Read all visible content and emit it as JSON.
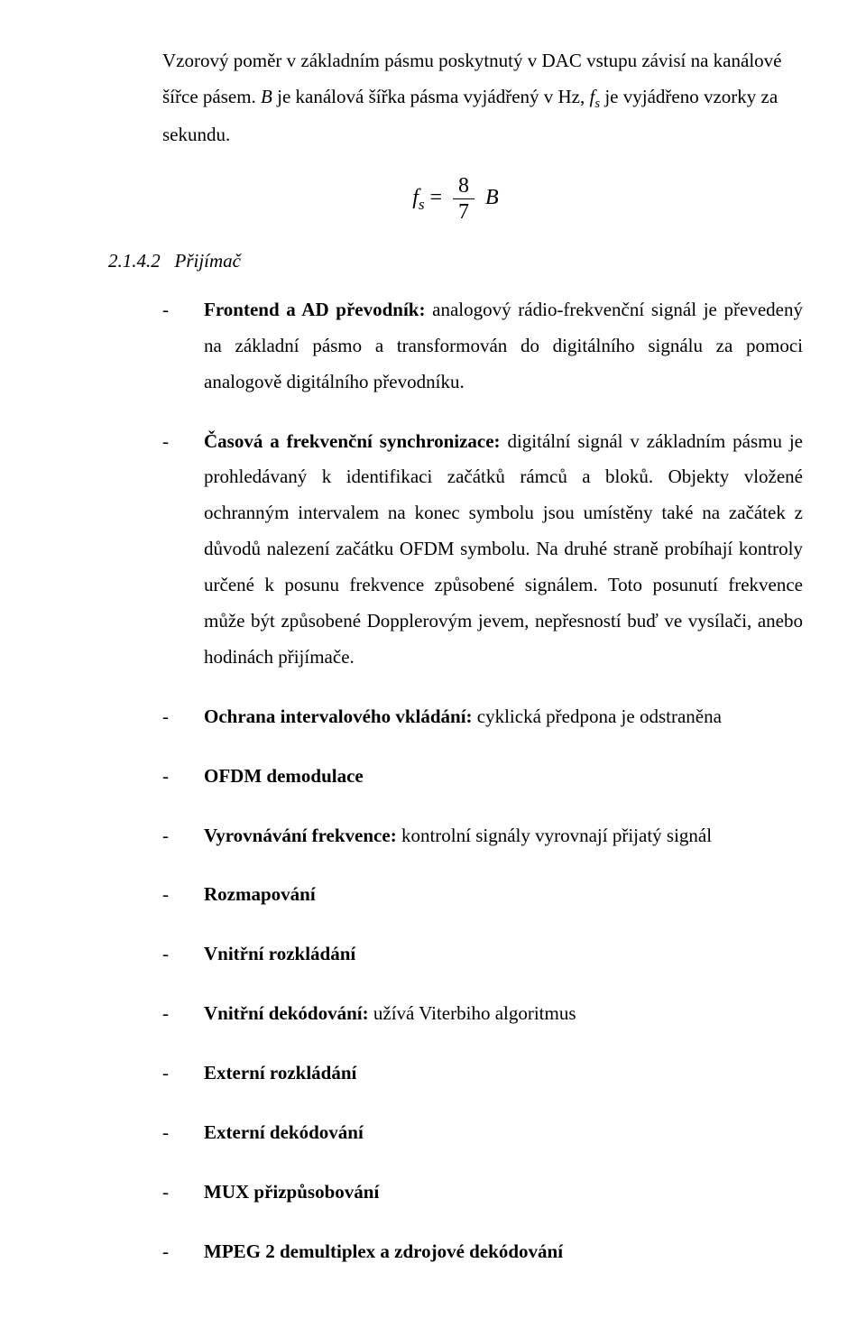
{
  "intro": {
    "line1_prefix": "Vzorový poměr v základním pásmu poskytnutý v DAC vstupu závisí na",
    "line2_prefix": "kanálové šířce pásem. ",
    "line2_Bword": "B",
    "line2_mid": " je kanálová šířka pásma vyjádřený v Hz,  ",
    "line2_f": "f",
    "line2_s": "s",
    "line2_end": " je",
    "line3": "vyjádřeno vzorky",
    "line4": "za sekundu."
  },
  "formula": {
    "lhs_f": "f",
    "lhs_s": "s",
    "eq": " = ",
    "num": "8",
    "den": "7",
    "rhs": "B"
  },
  "section": {
    "number": "2.1.4.2",
    "title": "Přijímač"
  },
  "items": [
    {
      "bold": "Frontend a AD převodník:",
      "rest": " analogový rádio-frekvenční signál je převedený na základní pásmo a transformován do digitálního signálu za pomoci analogově digitálního převodníku."
    },
    {
      "bold": "Časová a frekvenční synchronizace:",
      "rest": " digitální signál v základním pásmu je prohledávaný k identifikaci začátků rámců a bloků. Objekty vložené ochranným intervalem na konec symbolu jsou umístěny také na začátek z důvodů nalezení začátku OFDM symbolu. Na druhé straně probíhají kontroly určené k  posunu frekvence způsobené signálem. Toto posunutí frekvence může být způsobené Dopplerovým jevem, nepřesností buď ve vysílači, anebo hodinách přijímače."
    },
    {
      "bold": "Ochrana intervalového vkládání:",
      "rest": " cyklická předpona je odstraněna"
    },
    {
      "bold": "OFDM demodulace",
      "rest": ""
    },
    {
      "bold": "Vyrovnávání frekvence:",
      "rest": " kontrolní signály vyrovnají přijatý signál"
    },
    {
      "bold": "Rozmapování",
      "rest": ""
    },
    {
      "bold": "Vnitřní rozkládání",
      "rest": ""
    },
    {
      "bold": "Vnitřní dekódování:",
      "rest": " užívá Viterbiho algoritmus"
    },
    {
      "bold": "Externí rozkládání",
      "rest": ""
    },
    {
      "bold": "Externí dekódování",
      "rest": ""
    },
    {
      "bold": "MUX přizpůsobování",
      "rest": ""
    },
    {
      "bold": "MPEG 2 demultiplex a zdrojové dekódování",
      "rest": ""
    }
  ]
}
